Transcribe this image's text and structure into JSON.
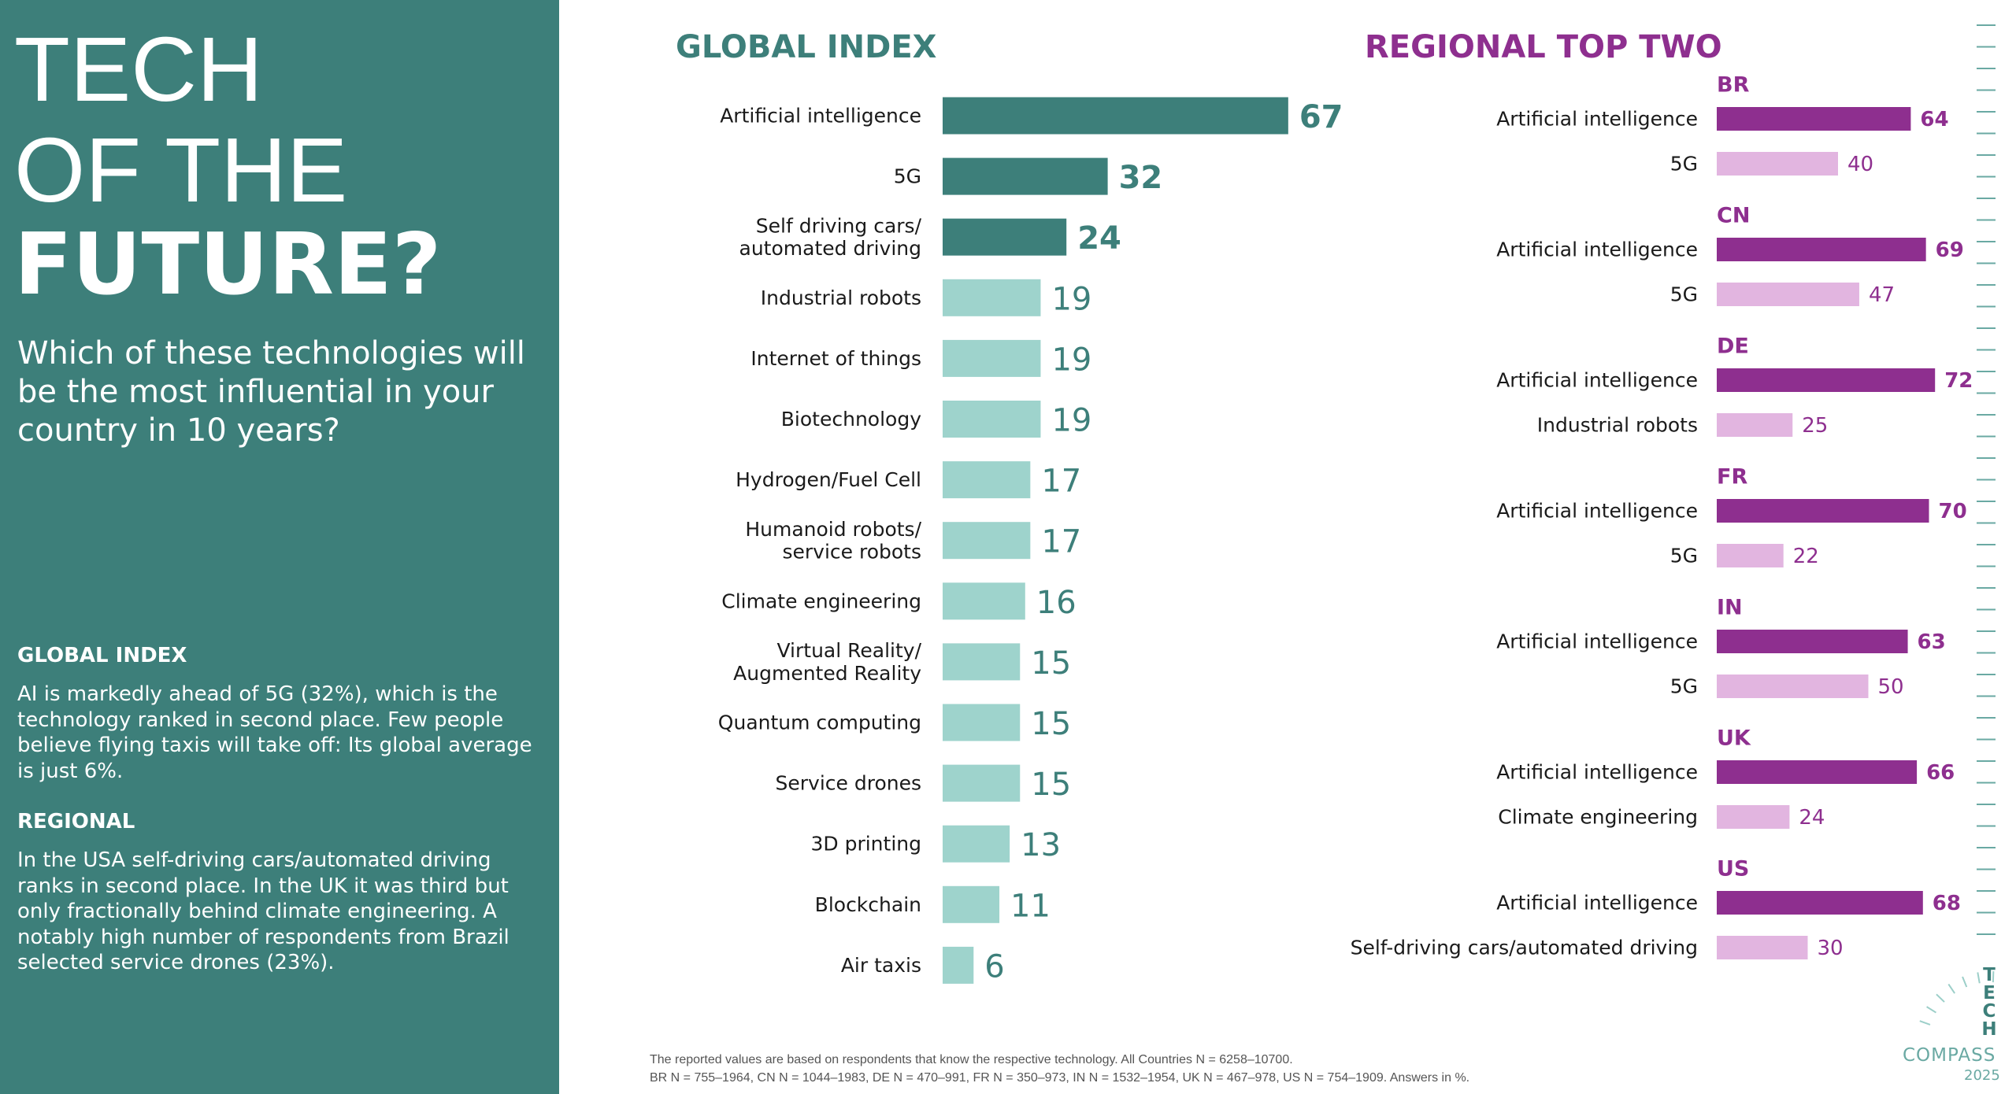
{
  "sidebar": {
    "title_line1": "TECH",
    "title_line2": "OF THE",
    "title_line3": "FUTURE?",
    "question": "Which of these technologies will be the most influential in your country in 10 years?",
    "global_heading": "GLOBAL INDEX",
    "global_text": "AI is markedly ahead of 5G (32%), which is the technology ranked in second place. Few people believe flying taxis will take off: Its global average is just 6%.",
    "regional_heading": "REGIONAL",
    "regional_text": "In the USA self-driving cars/automated driving ranks in second place. In the UK it was third but only fractionally behind climate engineering. A notably high number of respondents from Brazil selected service drones (23%)."
  },
  "colors": {
    "teal_dark": "#3d7f7a",
    "teal_light": "#9ed3cc",
    "purple_dark": "#8e2f8f",
    "purple_light": "#e2b5e0",
    "sidebar_bg": "#3d7f7a"
  },
  "chart_data": [
    {
      "type": "bar",
      "orientation": "horizontal",
      "title": "GLOBAL INDEX",
      "unit": "%",
      "categories": [
        "Artificial intelligence",
        "5G",
        "Self driving cars/\nautomated driving",
        "Industrial robots",
        "Internet of things",
        "Biotechnology",
        "Hydrogen/Fuel Cell",
        "Humanoid robots/\nservice robots",
        "Climate engineering",
        "Virtual Reality/\nAugmented Reality",
        "Quantum computing",
        "Service drones",
        "3D printing",
        "Blockchain",
        "Air taxis"
      ],
      "values": [
        67,
        32,
        24,
        19,
        19,
        19,
        17,
        17,
        16,
        15,
        15,
        15,
        13,
        11,
        6
      ],
      "highlight_top": 3,
      "xlim": [
        0,
        100
      ]
    },
    {
      "type": "bar",
      "orientation": "horizontal",
      "title": "REGIONAL TOP TWO",
      "unit": "%",
      "xlim": [
        0,
        100
      ],
      "groups": [
        {
          "region": "BR",
          "items": [
            {
              "label": "Artificial intelligence",
              "value": 64
            },
            {
              "label": "5G",
              "value": 40
            }
          ]
        },
        {
          "region": "CN",
          "items": [
            {
              "label": "Artificial intelligence",
              "value": 69
            },
            {
              "label": "5G",
              "value": 47
            }
          ]
        },
        {
          "region": "DE",
          "items": [
            {
              "label": "Artificial intelligence",
              "value": 72
            },
            {
              "label": "Industrial robots",
              "value": 25
            }
          ]
        },
        {
          "region": "FR",
          "items": [
            {
              "label": "Artificial intelligence",
              "value": 70
            },
            {
              "label": "5G",
              "value": 22
            }
          ]
        },
        {
          "region": "IN",
          "items": [
            {
              "label": "Artificial intelligence",
              "value": 63
            },
            {
              "label": "5G",
              "value": 50
            }
          ]
        },
        {
          "region": "UK",
          "items": [
            {
              "label": "Artificial intelligence",
              "value": 66
            },
            {
              "label": "Climate engineering",
              "value": 24
            }
          ]
        },
        {
          "region": "US",
          "items": [
            {
              "label": "Artificial intelligence",
              "value": 68
            },
            {
              "label": "Self-driving cars/automated driving",
              "value": 30
            }
          ]
        }
      ]
    }
  ],
  "footnote": {
    "line1": "The reported values are based on respondents that know the respective technology. All Countries N = 6258–10700.",
    "line2": "BR N = 755–1964, CN N = 1044–1983, DE N = 470–991, FR N = 350–973, IN N = 1532–1954, UK N = 467–978, US N = 754–1909. Answers in %."
  },
  "brand": {
    "letters": [
      "T",
      "E",
      "C",
      "H"
    ],
    "name": "COMPASS",
    "year": "2025"
  }
}
